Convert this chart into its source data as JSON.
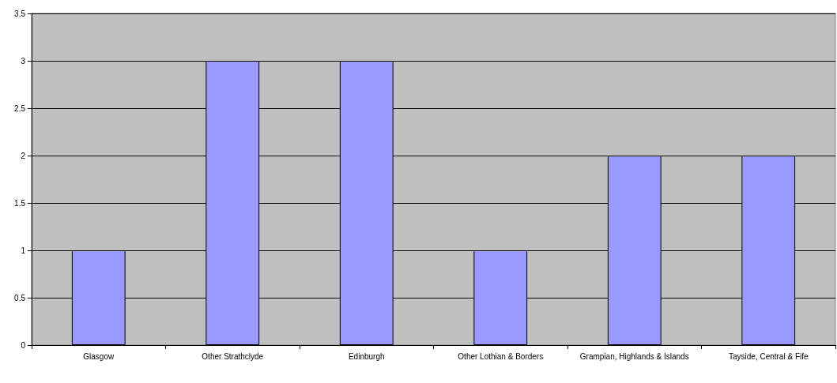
{
  "chart_data": {
    "type": "bar",
    "categories": [
      "Glasgow",
      "Other Strathclyde",
      "Edinburgh",
      "Other Lothian & Borders",
      "Grampian, Highlands & Islands",
      "Tayside, Central & Fife"
    ],
    "values": [
      1,
      3,
      3,
      1,
      2,
      2
    ],
    "color": "#9999ff",
    "ylim": [
      0,
      3.5
    ],
    "yticks": [
      0,
      0.5,
      1,
      1.5,
      2,
      2.5,
      3,
      3.5
    ],
    "grid": "y"
  }
}
